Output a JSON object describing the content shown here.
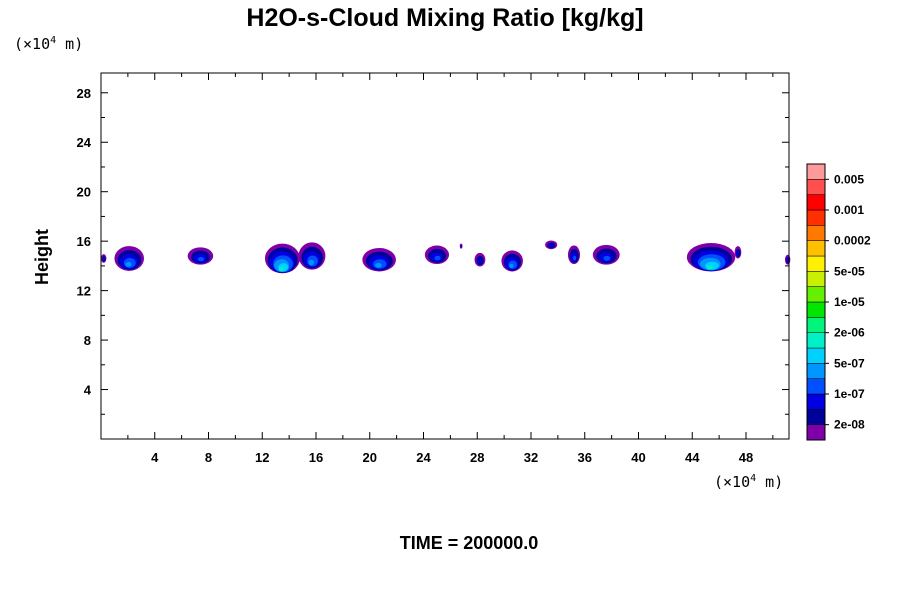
{
  "chart_data": {
    "type": "contour",
    "title": "H2O-s-Cloud Mixing Ratio [kg/kg]",
    "ylabel": "Height",
    "y_unit_prefix": "(×10",
    "y_unit_exp": "4",
    "y_unit_suffix": " m)",
    "x_unit_prefix": "(×10",
    "x_unit_exp": "4",
    "x_unit_suffix": " m)",
    "time_label": "TIME = 200000.0",
    "xlim": [
      0,
      51.2
    ],
    "ylim": [
      0,
      29.6
    ],
    "x_ticks": [
      4,
      8,
      12,
      16,
      20,
      24,
      28,
      32,
      36,
      40,
      44,
      48
    ],
    "y_ticks": [
      4,
      8,
      12,
      16,
      20,
      24,
      28
    ],
    "levels": [
      "2e-08",
      "1e-07",
      "5e-07",
      "2e-06",
      "1e-05",
      "5e-05",
      "0.0002",
      "0.001",
      "0.005"
    ],
    "level_colors": [
      "#7f00a8",
      "#00009a",
      "#0000e0",
      "#0050ff",
      "#0096ff",
      "#00d2ff",
      "#00f0c8",
      "#00f57a",
      "#00e600",
      "#64f000",
      "#c8f000",
      "#fff000",
      "#ffc000",
      "#ff7800",
      "#ff3000",
      "#ff0000",
      "#ff5050",
      "#ff9a9a"
    ],
    "clouds": [
      {
        "x": 0.2,
        "y": 14.6,
        "w": 0.4,
        "h": 0.7,
        "peak": 3
      },
      {
        "x": 2.1,
        "y": 14.6,
        "w": 2.2,
        "h": 2.0,
        "peak": 5
      },
      {
        "x": 7.4,
        "y": 14.8,
        "w": 1.9,
        "h": 1.4,
        "peak": 4
      },
      {
        "x": 13.5,
        "y": 14.6,
        "w": 2.6,
        "h": 2.4,
        "peak": 7
      },
      {
        "x": 15.7,
        "y": 14.8,
        "w": 2.0,
        "h": 2.2,
        "peak": 5
      },
      {
        "x": 20.7,
        "y": 14.5,
        "w": 2.5,
        "h": 1.9,
        "peak": 5
      },
      {
        "x": 25.0,
        "y": 14.9,
        "w": 1.8,
        "h": 1.5,
        "peak": 4
      },
      {
        "x": 26.8,
        "y": 15.6,
        "w": 0.2,
        "h": 0.4,
        "peak": 2
      },
      {
        "x": 28.2,
        "y": 14.5,
        "w": 0.8,
        "h": 1.1,
        "peak": 3
      },
      {
        "x": 30.6,
        "y": 14.4,
        "w": 1.6,
        "h": 1.7,
        "peak": 5
      },
      {
        "x": 33.5,
        "y": 15.7,
        "w": 0.9,
        "h": 0.7,
        "peak": 3
      },
      {
        "x": 35.2,
        "y": 14.9,
        "w": 0.9,
        "h": 1.5,
        "peak": 4
      },
      {
        "x": 37.6,
        "y": 14.9,
        "w": 2.0,
        "h": 1.6,
        "peak": 4
      },
      {
        "x": 45.4,
        "y": 14.7,
        "w": 3.6,
        "h": 2.3,
        "peak": 7
      },
      {
        "x": 47.4,
        "y": 15.1,
        "w": 0.5,
        "h": 1.0,
        "peak": 3
      },
      {
        "x": 51.1,
        "y": 14.5,
        "w": 0.4,
        "h": 0.8,
        "peak": 3
      }
    ]
  }
}
